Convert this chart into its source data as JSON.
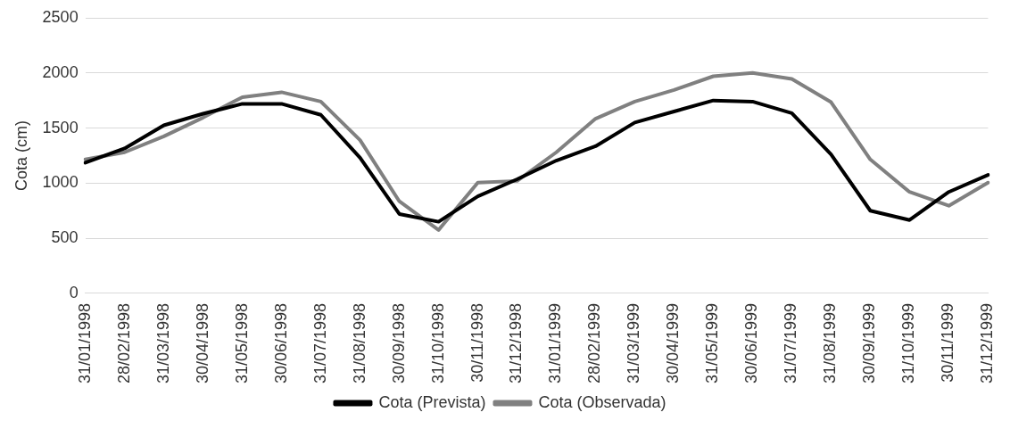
{
  "chart_data": {
    "type": "line",
    "ylabel": "Cota (cm)",
    "categories": [
      "31/01/1998",
      "28/02/1998",
      "31/03/1998",
      "30/04/1998",
      "31/05/1998",
      "30/06/1998",
      "31/07/1998",
      "31/08/1998",
      "30/09/1998",
      "31/10/1998",
      "30/11/1998",
      "31/12/1998",
      "31/01/1999",
      "28/02/1999",
      "31/03/1999",
      "30/04/1999",
      "31/05/1999",
      "30/06/1999",
      "31/07/1999",
      "31/08/1999",
      "30/09/1999",
      "31/10/1999",
      "30/11/1999",
      "31/12/1999"
    ],
    "series": [
      {
        "name": "Cota (Prevista)",
        "color": "#000000",
        "values": [
          1185,
          1315,
          1525,
          1630,
          1720,
          1720,
          1620,
          1230,
          720,
          650,
          880,
          1035,
          1205,
          1335,
          1550,
          1650,
          1750,
          1740,
          1635,
          1260,
          750,
          665,
          920,
          1075
        ]
      },
      {
        "name": "Cota (Observada)",
        "color": "#808080",
        "values": [
          1215,
          1280,
          1425,
          1595,
          1780,
          1825,
          1740,
          1390,
          835,
          575,
          1005,
          1020,
          1280,
          1585,
          1740,
          1845,
          1970,
          2000,
          1945,
          1735,
          1215,
          920,
          795,
          1005
        ]
      }
    ],
    "ylim": [
      0,
      2500
    ],
    "yticks": [
      0,
      500,
      1000,
      1500,
      2000,
      2500
    ],
    "grid": "y",
    "legend": "bottom",
    "marker": "none",
    "line_style": "solid"
  }
}
